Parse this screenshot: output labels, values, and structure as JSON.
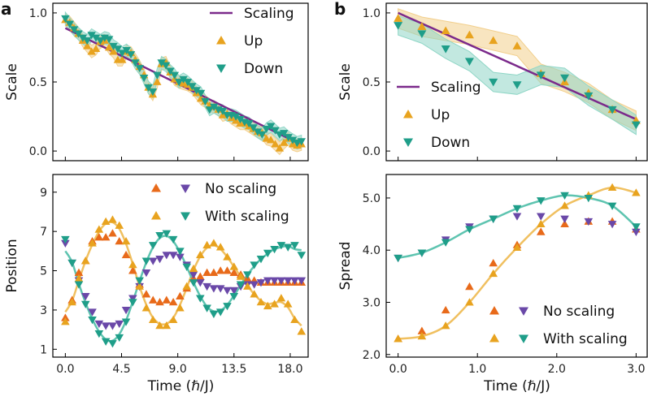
{
  "colors": {
    "scaling": "#7b2a8b",
    "up": "#e8a31f",
    "down": "#1f9e89",
    "up_line": "#f0c060",
    "down_line": "#5ec4b0",
    "no_scaling_up": "#e86a1a",
    "no_scaling_down": "#6a48a8",
    "band_up": "#f2cf8c",
    "band_down": "#8fd6c6"
  },
  "time_axis_label": "Time (ℏ/J)",
  "chart_data": [
    {
      "panel": "a-top",
      "type": "scatter",
      "panel_label": "a",
      "ylabel": "Scale",
      "xlim": [
        -1.0,
        19.5
      ],
      "ylim": [
        -0.07,
        1.07
      ],
      "yticks": [
        "0.0",
        "0.5",
        "1.0"
      ],
      "ytick_values": [
        0.0,
        0.5,
        1.0
      ],
      "xtick_values": [
        0,
        4.5,
        9,
        13.5,
        18
      ],
      "legend": [
        "Scaling",
        "Up",
        "Down"
      ],
      "series": [
        {
          "name": "Scaling",
          "kind": "line",
          "x": [
            0,
            19
          ],
          "y": [
            0.89,
            0.04
          ]
        },
        {
          "name": "Up",
          "kind": "up-triangle",
          "x": [
            0,
            0.35,
            0.7,
            1.05,
            1.4,
            1.75,
            2.1,
            2.45,
            2.8,
            3.15,
            3.5,
            3.85,
            4.2,
            4.55,
            4.9,
            5.25,
            5.6,
            5.95,
            6.3,
            6.65,
            7,
            7.35,
            7.7,
            8.05,
            8.4,
            8.75,
            9.1,
            9.45,
            9.8,
            10.15,
            10.5,
            10.85,
            11.2,
            11.55,
            11.9,
            12.25,
            12.6,
            12.95,
            13.3,
            13.65,
            14,
            14.35,
            14.7,
            15.05,
            15.4,
            15.75,
            16.1,
            16.45,
            16.8,
            17.15,
            17.5,
            17.85,
            18.2,
            18.55,
            18.9
          ],
          "y": [
            0.95,
            0.93,
            0.89,
            0.85,
            0.8,
            0.76,
            0.72,
            0.74,
            0.79,
            0.8,
            0.75,
            0.72,
            0.66,
            0.66,
            0.72,
            0.71,
            0.66,
            0.61,
            0.55,
            0.46,
            0.41,
            0.5,
            0.63,
            0.64,
            0.57,
            0.52,
            0.5,
            0.49,
            0.48,
            0.46,
            0.42,
            0.38,
            0.36,
            0.33,
            0.32,
            0.3,
            0.26,
            0.27,
            0.24,
            0.22,
            0.2,
            0.2,
            0.18,
            0.16,
            0.14,
            0.13,
            0.09,
            0.08,
            0.05,
            0.02,
            0.06,
            0.09,
            0.05,
            0.04,
            0.05
          ]
        },
        {
          "name": "Down",
          "kind": "down-triangle",
          "x": [
            0,
            0.35,
            0.7,
            1.05,
            1.4,
            1.75,
            2.1,
            2.45,
            2.8,
            3.15,
            3.5,
            3.85,
            4.2,
            4.55,
            4.9,
            5.25,
            5.6,
            5.95,
            6.3,
            6.65,
            7,
            7.35,
            7.7,
            8.05,
            8.4,
            8.75,
            9.1,
            9.45,
            9.8,
            10.15,
            10.5,
            10.85,
            11.2,
            11.55,
            11.9,
            12.25,
            12.6,
            12.95,
            13.3,
            13.65,
            14,
            14.35,
            14.7,
            15.05,
            15.4,
            15.75,
            16.1,
            16.45,
            16.8,
            17.15,
            17.5,
            17.85,
            18.2,
            18.55,
            18.9
          ],
          "y": [
            0.96,
            0.92,
            0.88,
            0.85,
            0.82,
            0.8,
            0.84,
            0.82,
            0.8,
            0.82,
            0.81,
            0.76,
            0.74,
            0.71,
            0.73,
            0.7,
            0.64,
            0.6,
            0.53,
            0.46,
            0.43,
            0.55,
            0.64,
            0.62,
            0.58,
            0.55,
            0.5,
            0.52,
            0.5,
            0.47,
            0.44,
            0.42,
            0.36,
            0.3,
            0.32,
            0.3,
            0.29,
            0.26,
            0.26,
            0.25,
            0.23,
            0.21,
            0.2,
            0.17,
            0.14,
            0.12,
            0.16,
            0.18,
            0.15,
            0.12,
            0.13,
            0.1,
            0.08,
            0.06,
            0.07
          ]
        }
      ]
    },
    {
      "panel": "b-top",
      "type": "scatter",
      "panel_label": "b",
      "ylabel": "Scale",
      "xlim": [
        -0.15,
        3.15
      ],
      "ylim": [
        -0.07,
        1.07
      ],
      "yticks": [
        "0.0",
        "0.5",
        "1.0"
      ],
      "ytick_values": [
        0.0,
        0.5,
        1.0
      ],
      "xtick_values": [
        0,
        1,
        2,
        3
      ],
      "legend": [
        "Scaling",
        "Up",
        "Down"
      ],
      "series": [
        {
          "name": "Scaling",
          "kind": "line",
          "x": [
            0,
            3
          ],
          "y": [
            1.0,
            0.23
          ]
        },
        {
          "name": "Up",
          "kind": "up-triangle",
          "x": [
            0,
            0.3,
            0.6,
            0.9,
            1.2,
            1.5,
            1.8,
            2.1,
            2.4,
            2.7,
            3.0
          ],
          "y": [
            0.96,
            0.9,
            0.87,
            0.84,
            0.8,
            0.76,
            0.56,
            0.5,
            0.42,
            0.3,
            0.22
          ]
        },
        {
          "name": "Down",
          "kind": "down-triangle",
          "x": [
            0,
            0.3,
            0.6,
            0.9,
            1.2,
            1.5,
            1.8,
            2.1,
            2.4,
            2.7,
            3.0
          ],
          "y": [
            0.91,
            0.85,
            0.74,
            0.65,
            0.5,
            0.48,
            0.55,
            0.53,
            0.4,
            0.3,
            0.19
          ]
        }
      ]
    },
    {
      "panel": "a-bottom",
      "type": "scatter",
      "ylabel": "Position",
      "xlabel": "Time (ℏ/J)",
      "xlim": [
        -1.0,
        19.5
      ],
      "ylim": [
        0.6,
        9.9
      ],
      "yticks": [
        "1",
        "3",
        "5",
        "7",
        "9"
      ],
      "ytick_values": [
        1,
        3,
        5,
        7,
        9
      ],
      "xticks": [
        "0.0",
        "4.5",
        "9.0",
        "13.5",
        "18.0"
      ],
      "xtick_values": [
        0,
        4.5,
        9,
        13.5,
        18
      ],
      "legend": [
        "No scaling",
        "With scaling"
      ],
      "series": [
        {
          "name": "No scaling up",
          "kind": "up-triangle",
          "x": [
            0,
            0.54,
            1.08,
            1.62,
            2.16,
            2.7,
            3.24,
            3.78,
            4.32,
            4.86,
            5.4,
            5.94,
            6.48,
            7.02,
            7.56,
            8.1,
            8.64,
            9.18,
            9.72,
            10.26,
            10.8,
            11.34,
            11.88,
            12.42,
            12.96,
            13.5,
            14.04,
            14.58,
            15.12,
            15.66,
            16.2,
            16.74,
            17.28,
            17.82,
            18.36,
            18.9
          ],
          "y": [
            2.6,
            3.5,
            4.9,
            5.5,
            6.5,
            6.7,
            6.7,
            6.9,
            6.5,
            5.8,
            5,
            4.3,
            3.8,
            3.5,
            3.4,
            3.5,
            3.4,
            3.7,
            4.1,
            4.6,
            4.7,
            4.9,
            4.9,
            5,
            5,
            4.9,
            4.8,
            4.6,
            4.5,
            4.4,
            4.4,
            4.4,
            4.4,
            4.4,
            4.4,
            4.4
          ]
        },
        {
          "name": "No scaling down",
          "kind": "down-triangle",
          "x": [
            0,
            0.54,
            1.08,
            1.62,
            2.16,
            2.7,
            3.24,
            3.78,
            4.32,
            4.86,
            5.4,
            5.94,
            6.48,
            7.02,
            7.56,
            8.1,
            8.64,
            9.18,
            9.72,
            10.26,
            10.8,
            11.34,
            11.88,
            12.42,
            12.96,
            13.5,
            14.04,
            14.58,
            15.12,
            15.66,
            16.2,
            16.74,
            17.28,
            17.82,
            18.36,
            18.9
          ],
          "y": [
            6.4,
            5.4,
            4.5,
            3.7,
            2.9,
            2.3,
            2.2,
            2.2,
            2.3,
            3,
            3.6,
            4.2,
            4.9,
            5.5,
            5.6,
            5.8,
            5.8,
            5.7,
            5.3,
            4.8,
            4.4,
            4.2,
            4.1,
            4.1,
            4,
            4,
            4.2,
            4.3,
            4.3,
            4.4,
            4.5,
            4.5,
            4.5,
            4.5,
            4.5,
            4.5
          ]
        },
        {
          "name": "With scaling up",
          "kind": "up-triangle",
          "x": [
            0,
            0.54,
            1.08,
            1.62,
            2.16,
            2.7,
            3.24,
            3.78,
            4.32,
            4.86,
            5.4,
            5.94,
            6.48,
            7.02,
            7.56,
            8.1,
            8.64,
            9.18,
            9.72,
            10.26,
            10.8,
            11.34,
            11.88,
            12.42,
            12.96,
            13.5,
            14.04,
            14.58,
            15.12,
            15.66,
            16.2,
            16.74,
            17.28,
            17.82,
            18.36,
            18.9
          ],
          "y": [
            2.4,
            3.4,
            4.6,
            5.5,
            6.4,
            7.1,
            7.5,
            7.6,
            7.3,
            6.5,
            5.3,
            4.2,
            3.1,
            2.5,
            2.2,
            2.2,
            2.5,
            3.1,
            4.2,
            5.1,
            5.8,
            6.3,
            6.4,
            6.2,
            5.7,
            5.2,
            4.7,
            4.2,
            3.8,
            3.4,
            3.2,
            3.3,
            3.6,
            3.3,
            2.5,
            1.9
          ]
        },
        {
          "name": "With scaling down",
          "kind": "down-triangle",
          "x": [
            0,
            0.54,
            1.08,
            1.62,
            2.16,
            2.7,
            3.24,
            3.78,
            4.32,
            4.86,
            5.4,
            5.94,
            6.48,
            7.02,
            7.56,
            8.1,
            8.64,
            9.18,
            9.72,
            10.26,
            10.8,
            11.34,
            11.88,
            12.42,
            12.96,
            13.5,
            14.04,
            14.58,
            15.12,
            15.66,
            16.2,
            16.74,
            17.28,
            17.82,
            18.36,
            18.9
          ],
          "y": [
            6.6,
            5.4,
            4.3,
            3.3,
            2.5,
            1.8,
            1.4,
            1.3,
            1.6,
            2.4,
            3.4,
            4.5,
            5.5,
            6.3,
            6.8,
            6.9,
            6.6,
            6,
            5.2,
            4.4,
            3.6,
            3.1,
            2.8,
            2.9,
            3.2,
            3.7,
            4.3,
            4.8,
            5.3,
            5.6,
            5.9,
            6.1,
            6.3,
            6.2,
            6.3,
            5.8
          ]
        }
      ]
    },
    {
      "panel": "b-bottom",
      "type": "scatter",
      "ylabel": "Spread",
      "xlabel": "Time (ℏ/J)",
      "xlim": [
        -0.15,
        3.15
      ],
      "ylim": [
        1.95,
        5.45
      ],
      "yticks": [
        "2.0",
        "3.0",
        "4.0",
        "5.0"
      ],
      "ytick_values": [
        2,
        3,
        4,
        5
      ],
      "xticks": [
        "0.0",
        "1.0",
        "2.0",
        "3.0"
      ],
      "xtick_values": [
        0,
        1,
        2,
        3
      ],
      "legend": [
        "No scaling",
        "With scaling"
      ],
      "series": [
        {
          "name": "No scaling up",
          "kind": "up-triangle",
          "x": [
            0,
            0.3,
            0.6,
            0.9,
            1.2,
            1.5,
            1.8,
            2.1,
            2.4,
            2.7,
            3.0
          ],
          "y": [
            2.3,
            2.45,
            2.85,
            3.3,
            3.75,
            4.1,
            4.35,
            4.5,
            4.55,
            4.55,
            4.4
          ]
        },
        {
          "name": "No scaling down",
          "kind": "down-triangle",
          "x": [
            0,
            0.3,
            0.6,
            0.9,
            1.2,
            1.5,
            1.8,
            2.1,
            2.4,
            2.7,
            3.0
          ],
          "y": [
            3.85,
            3.95,
            4.2,
            4.45,
            4.6,
            4.65,
            4.65,
            4.6,
            4.55,
            4.5,
            4.35
          ]
        },
        {
          "name": "With scaling up",
          "kind": "up-triangle",
          "x": [
            0,
            0.3,
            0.6,
            0.9,
            1.2,
            1.5,
            1.8,
            2.1,
            2.4,
            2.7,
            3.0
          ],
          "y": [
            2.3,
            2.35,
            2.55,
            3.0,
            3.55,
            4.05,
            4.5,
            4.85,
            5.05,
            5.2,
            5.1
          ]
        },
        {
          "name": "With scaling down",
          "kind": "down-triangle",
          "x": [
            0,
            0.3,
            0.6,
            0.9,
            1.2,
            1.5,
            1.8,
            2.1,
            2.4,
            2.7,
            3.0
          ],
          "y": [
            3.85,
            3.95,
            4.15,
            4.4,
            4.6,
            4.8,
            4.95,
            5.05,
            5.0,
            4.85,
            4.45
          ]
        }
      ]
    }
  ]
}
